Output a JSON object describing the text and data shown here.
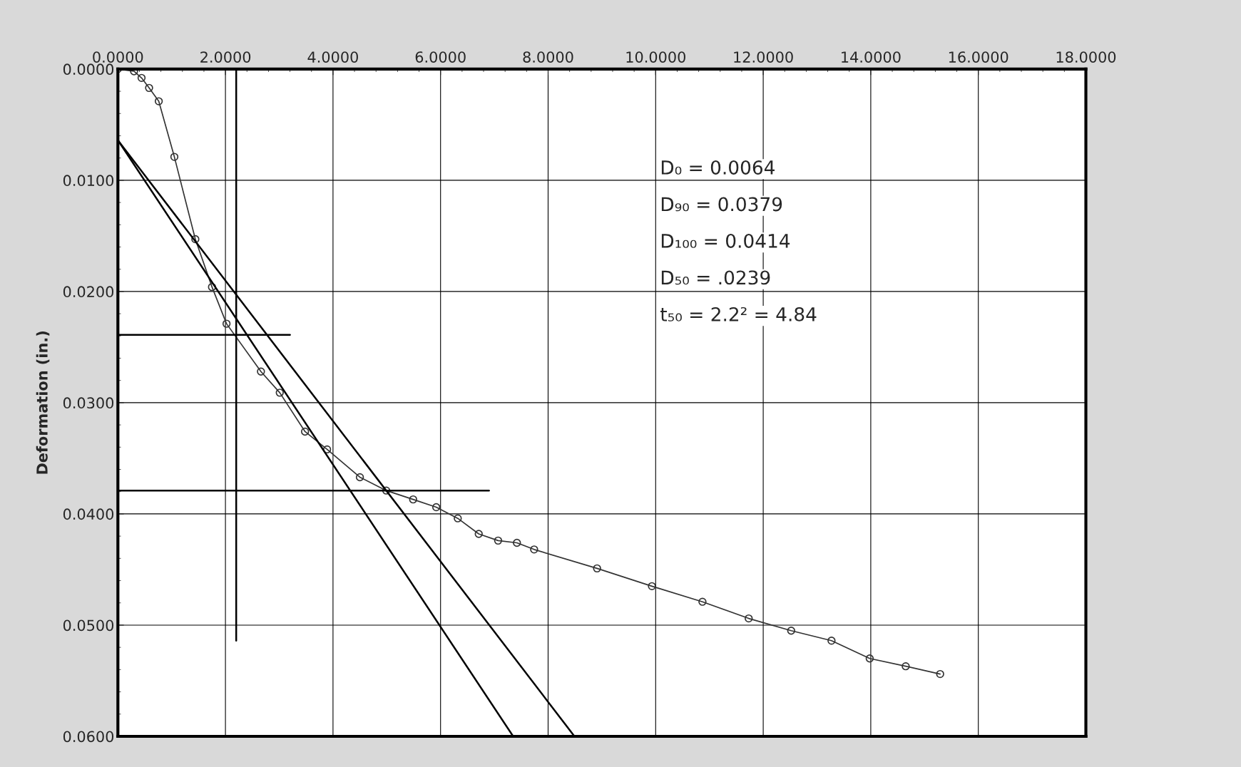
{
  "chart_data": {
    "type": "line",
    "ylabel": "Deformation (in.)",
    "xlim": [
      0,
      18
    ],
    "ylim": [
      0.06,
      0
    ],
    "xticks": [
      {
        "value": 0,
        "label": "0.0000"
      },
      {
        "value": 2,
        "label": "2.0000"
      },
      {
        "value": 4,
        "label": "4.0000"
      },
      {
        "value": 6,
        "label": "6.0000"
      },
      {
        "value": 8,
        "label": "8.0000"
      },
      {
        "value": 10,
        "label": "10.0000"
      },
      {
        "value": 12,
        "label": "12.0000"
      },
      {
        "value": 14,
        "label": "14.0000"
      },
      {
        "value": 16,
        "label": "16.0000"
      },
      {
        "value": 18,
        "label": "18.0000"
      }
    ],
    "yticks": [
      {
        "value": 0,
        "label": "0.0000"
      },
      {
        "value": 0.01,
        "label": "0.0100"
      },
      {
        "value": 0.02,
        "label": "0.0200"
      },
      {
        "value": 0.03,
        "label": "0.0300"
      },
      {
        "value": 0.04,
        "label": "0.0400"
      },
      {
        "value": 0.05,
        "label": "0.0500"
      },
      {
        "value": 0.06,
        "label": "0.0600"
      }
    ],
    "grid": true,
    "legend": false,
    "series": [
      {
        "color": "#333333",
        "marker": "circle",
        "x": [
          0,
          0.3,
          0.44,
          0.58,
          0.76,
          1.05,
          1.44,
          1.75,
          2.02,
          2.66,
          3.01,
          3.48,
          3.89,
          4.5,
          4.99,
          5.49,
          5.92,
          6.32,
          6.71,
          7.07,
          7.42,
          7.74,
          8.91,
          9.93,
          10.87,
          11.73,
          12.52,
          13.27,
          13.98,
          14.65,
          15.29
        ],
        "values": [
          0,
          0.0002,
          0.0008,
          0.0017,
          0.0029,
          0.0079,
          0.0153,
          0.0196,
          0.0229,
          0.0272,
          0.0291,
          0.0326,
          0.0342,
          0.0367,
          0.0379,
          0.0387,
          0.0394,
          0.0404,
          0.0418,
          0.0424,
          0.0426,
          0.0432,
          0.0449,
          0.0465,
          0.0479,
          0.0494,
          0.0505,
          0.0514,
          0.053,
          0.0537,
          0.0544
        ]
      },
      {
        "type": "line",
        "color": "#000000",
        "marker": "none",
        "x": [
          0,
          7.35
        ],
        "values": [
          0.0064,
          0.06
        ]
      },
      {
        "type": "line",
        "color": "#000000",
        "marker": "none",
        "x": [
          0,
          8.49
        ],
        "values": [
          0.0064,
          0.06
        ]
      },
      {
        "type": "line",
        "color": "#000000",
        "marker": "none",
        "x": [
          0,
          3.2
        ],
        "values": [
          0.0239,
          0.0239
        ]
      },
      {
        "type": "line",
        "color": "#000000",
        "marker": "none",
        "x": [
          0,
          6.9
        ],
        "values": [
          0.0379,
          0.0379
        ]
      },
      {
        "type": "line",
        "color": "#000000",
        "marker": "none",
        "x": [
          2.2,
          2.2
        ],
        "values": [
          0,
          0.0514
        ]
      }
    ],
    "annotations": [
      "D₀ = 0.0064",
      "D₉₀ = 0.0379",
      "D₁₀₀ = 0.0414",
      "D₅₀ = .0239",
      "t₅₀ = 2.2² = 4.84"
    ]
  }
}
